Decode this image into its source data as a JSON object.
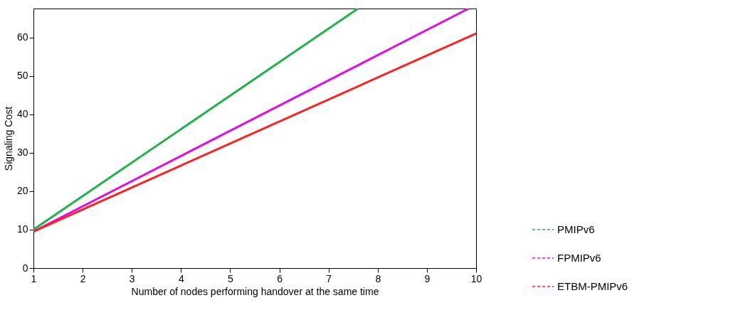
{
  "chart_data": {
    "type": "line",
    "xlabel": "Number of nodes performing handover at the same time",
    "ylabel": "Signaling Cost",
    "xlim": [
      1,
      10
    ],
    "ylim": [
      0,
      67.5
    ],
    "xticks": [
      1,
      2,
      3,
      4,
      5,
      6,
      7,
      8,
      9,
      10
    ],
    "yticks": [
      0,
      10,
      20,
      30,
      40,
      50,
      60
    ],
    "grid": false,
    "legend": "bottom right",
    "line_style": "solid",
    "marker": "none",
    "series": [
      {
        "name": "PMIPv6",
        "color": "#22b14c",
        "x": [
          1,
          7.6
        ],
        "values": [
          10,
          67.5
        ]
      },
      {
        "name": "FPMIPv6",
        "color": "#e010e0",
        "x": [
          1,
          9.85
        ],
        "values": [
          9.5,
          67.5
        ]
      },
      {
        "name": "ETBM-PMIPv6",
        "color": "#ff2020",
        "x": [
          1,
          10
        ],
        "values": [
          9.5,
          61
        ]
      }
    ]
  }
}
